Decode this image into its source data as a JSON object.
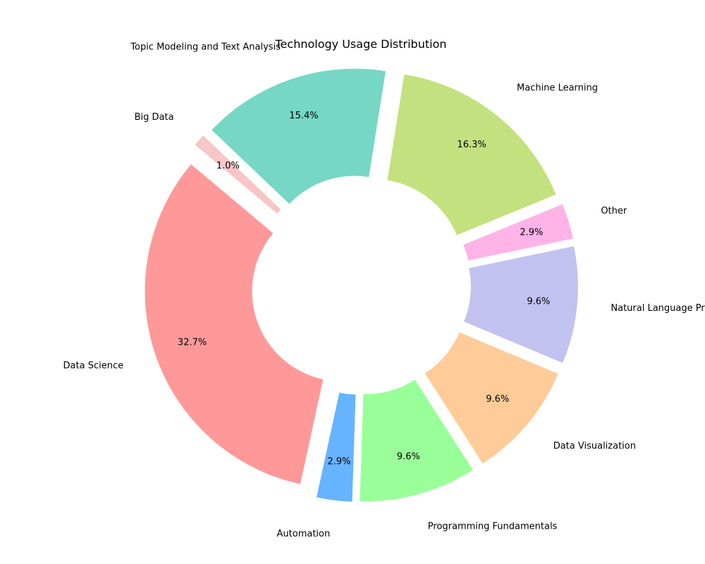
{
  "chart_data": {
    "type": "pie",
    "title": "Technology Usage Distribution",
    "donut": true,
    "categories": [
      "Data Science",
      "Automation",
      "Programming Fundamentals",
      "Data Visualization",
      "Natural Language Processing",
      "Other",
      "Machine Learning",
      "Topic Modeling and Text Analysis",
      "Big Data"
    ],
    "values": [
      32.7,
      2.9,
      9.6,
      9.6,
      9.6,
      2.9,
      16.3,
      15.4,
      1.0
    ],
    "value_labels": [
      "32.7%",
      "2.9%",
      "9.6%",
      "9.6%",
      "9.6%",
      "2.9%",
      "16.3%",
      "15.4%",
      "1.0%"
    ],
    "colors": [
      "#ff9999",
      "#66b3ff",
      "#99ff99",
      "#ffcc99",
      "#c2c2f0",
      "#ffb3e6",
      "#c4e17f",
      "#76d7c4",
      "#f7c6c7"
    ],
    "start_angle_deg": 140,
    "direction": "counterclockwise",
    "legend": "none"
  }
}
